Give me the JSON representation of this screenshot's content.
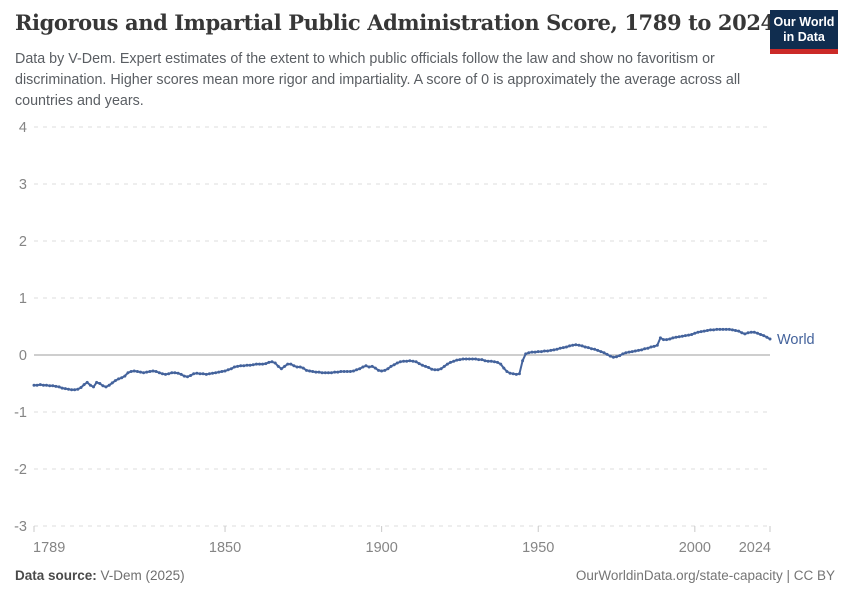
{
  "header": {
    "title": "Rigorous and Impartial Public Administration Score, 1789 to 2024",
    "subtitle": "Data by V-Dem. Expert estimates of the extent to which public officials follow the law and show no favoritism or discrimination. Higher scores mean more rigor and impartiality. A score of 0 is approximately the average across all countries and years.",
    "logo": {
      "line1": "Our World",
      "line2": "in Data",
      "bg_color": "#102d4f",
      "bar_color": "#cb2a28",
      "text_color": "#ffffff"
    }
  },
  "footer": {
    "source_label": "Data source:",
    "source_value": "V-Dem (2025)",
    "credit": "OurWorldinData.org/state-capacity | CC BY"
  },
  "chart_data": {
    "type": "line",
    "title": "Rigorous and Impartial Public Administration Score, 1789 to 2024",
    "xlabel": "",
    "ylabel": "",
    "xlim": [
      1789,
      2024
    ],
    "ylim": [
      -3,
      4
    ],
    "yticks": [
      4,
      3,
      2,
      1,
      0,
      -1,
      -2,
      -3
    ],
    "xticks": [
      1789,
      1850,
      1900,
      1950,
      2000,
      2024
    ],
    "grid": "horizontal-dashed",
    "zero_line": true,
    "legend_position": "end-of-line",
    "colors": {
      "grid": "#dcdcdc",
      "zero_line": "#9e9e9e",
      "axis_label": "#858585",
      "tick": "#c9c9c9"
    },
    "series": [
      {
        "name": "World",
        "color": "#44639c",
        "points": [
          [
            1789,
            -0.53
          ],
          [
            1790,
            -0.53
          ],
          [
            1791,
            -0.52
          ],
          [
            1792,
            -0.53
          ],
          [
            1793,
            -0.53
          ],
          [
            1794,
            -0.54
          ],
          [
            1795,
            -0.54
          ],
          [
            1796,
            -0.55
          ],
          [
            1797,
            -0.56
          ],
          [
            1798,
            -0.58
          ],
          [
            1799,
            -0.59
          ],
          [
            1800,
            -0.6
          ],
          [
            1801,
            -0.61
          ],
          [
            1802,
            -0.61
          ],
          [
            1803,
            -0.6
          ],
          [
            1804,
            -0.57
          ],
          [
            1805,
            -0.52
          ],
          [
            1806,
            -0.48
          ],
          [
            1807,
            -0.53
          ],
          [
            1808,
            -0.56
          ],
          [
            1809,
            -0.48
          ],
          [
            1810,
            -0.5
          ],
          [
            1811,
            -0.54
          ],
          [
            1812,
            -0.56
          ],
          [
            1813,
            -0.53
          ],
          [
            1814,
            -0.49
          ],
          [
            1815,
            -0.45
          ],
          [
            1816,
            -0.42
          ],
          [
            1817,
            -0.4
          ],
          [
            1818,
            -0.37
          ],
          [
            1819,
            -0.31
          ],
          [
            1820,
            -0.29
          ],
          [
            1821,
            -0.28
          ],
          [
            1822,
            -0.29
          ],
          [
            1823,
            -0.3
          ],
          [
            1824,
            -0.31
          ],
          [
            1825,
            -0.3
          ],
          [
            1826,
            -0.29
          ],
          [
            1827,
            -0.28
          ],
          [
            1828,
            -0.29
          ],
          [
            1829,
            -0.31
          ],
          [
            1830,
            -0.33
          ],
          [
            1831,
            -0.34
          ],
          [
            1832,
            -0.33
          ],
          [
            1833,
            -0.31
          ],
          [
            1834,
            -0.31
          ],
          [
            1835,
            -0.32
          ],
          [
            1836,
            -0.34
          ],
          [
            1837,
            -0.37
          ],
          [
            1838,
            -0.38
          ],
          [
            1839,
            -0.36
          ],
          [
            1840,
            -0.33
          ],
          [
            1841,
            -0.32
          ],
          [
            1842,
            -0.33
          ],
          [
            1843,
            -0.33
          ],
          [
            1844,
            -0.34
          ],
          [
            1845,
            -0.33
          ],
          [
            1846,
            -0.32
          ],
          [
            1847,
            -0.31
          ],
          [
            1848,
            -0.3
          ],
          [
            1849,
            -0.29
          ],
          [
            1850,
            -0.28
          ],
          [
            1851,
            -0.26
          ],
          [
            1852,
            -0.24
          ],
          [
            1853,
            -0.21
          ],
          [
            1854,
            -0.2
          ],
          [
            1855,
            -0.19
          ],
          [
            1856,
            -0.19
          ],
          [
            1857,
            -0.18
          ],
          [
            1858,
            -0.18
          ],
          [
            1859,
            -0.17
          ],
          [
            1860,
            -0.16
          ],
          [
            1861,
            -0.16
          ],
          [
            1862,
            -0.16
          ],
          [
            1863,
            -0.15
          ],
          [
            1864,
            -0.13
          ],
          [
            1865,
            -0.12
          ],
          [
            1866,
            -0.14
          ],
          [
            1867,
            -0.2
          ],
          [
            1868,
            -0.24
          ],
          [
            1869,
            -0.2
          ],
          [
            1870,
            -0.16
          ],
          [
            1871,
            -0.16
          ],
          [
            1872,
            -0.19
          ],
          [
            1873,
            -0.21
          ],
          [
            1874,
            -0.21
          ],
          [
            1875,
            -0.23
          ],
          [
            1876,
            -0.27
          ],
          [
            1877,
            -0.28
          ],
          [
            1878,
            -0.29
          ],
          [
            1879,
            -0.3
          ],
          [
            1880,
            -0.3
          ],
          [
            1881,
            -0.31
          ],
          [
            1882,
            -0.31
          ],
          [
            1883,
            -0.31
          ],
          [
            1884,
            -0.31
          ],
          [
            1885,
            -0.3
          ],
          [
            1886,
            -0.3
          ],
          [
            1887,
            -0.29
          ],
          [
            1888,
            -0.29
          ],
          [
            1889,
            -0.29
          ],
          [
            1890,
            -0.29
          ],
          [
            1891,
            -0.28
          ],
          [
            1892,
            -0.26
          ],
          [
            1893,
            -0.24
          ],
          [
            1894,
            -0.21
          ],
          [
            1895,
            -0.19
          ],
          [
            1896,
            -0.21
          ],
          [
            1897,
            -0.2
          ],
          [
            1898,
            -0.23
          ],
          [
            1899,
            -0.27
          ],
          [
            1900,
            -0.28
          ],
          [
            1901,
            -0.27
          ],
          [
            1902,
            -0.24
          ],
          [
            1903,
            -0.2
          ],
          [
            1904,
            -0.17
          ],
          [
            1905,
            -0.14
          ],
          [
            1906,
            -0.12
          ],
          [
            1907,
            -0.11
          ],
          [
            1908,
            -0.11
          ],
          [
            1909,
            -0.1
          ],
          [
            1910,
            -0.11
          ],
          [
            1911,
            -0.12
          ],
          [
            1912,
            -0.15
          ],
          [
            1913,
            -0.18
          ],
          [
            1914,
            -0.2
          ],
          [
            1915,
            -0.22
          ],
          [
            1916,
            -0.25
          ],
          [
            1917,
            -0.26
          ],
          [
            1918,
            -0.26
          ],
          [
            1919,
            -0.24
          ],
          [
            1920,
            -0.2
          ],
          [
            1921,
            -0.16
          ],
          [
            1922,
            -0.13
          ],
          [
            1923,
            -0.11
          ],
          [
            1924,
            -0.09
          ],
          [
            1925,
            -0.08
          ],
          [
            1926,
            -0.07
          ],
          [
            1927,
            -0.07
          ],
          [
            1928,
            -0.07
          ],
          [
            1929,
            -0.07
          ],
          [
            1930,
            -0.07
          ],
          [
            1931,
            -0.08
          ],
          [
            1932,
            -0.08
          ],
          [
            1933,
            -0.1
          ],
          [
            1934,
            -0.11
          ],
          [
            1935,
            -0.11
          ],
          [
            1936,
            -0.12
          ],
          [
            1937,
            -0.13
          ],
          [
            1938,
            -0.16
          ],
          [
            1939,
            -0.23
          ],
          [
            1940,
            -0.29
          ],
          [
            1941,
            -0.32
          ],
          [
            1942,
            -0.33
          ],
          [
            1943,
            -0.34
          ],
          [
            1944,
            -0.33
          ],
          [
            1945,
            -0.1
          ],
          [
            1946,
            0.02
          ],
          [
            1947,
            0.04
          ],
          [
            1948,
            0.05
          ],
          [
            1949,
            0.05
          ],
          [
            1950,
            0.06
          ],
          [
            1951,
            0.06
          ],
          [
            1952,
            0.07
          ],
          [
            1953,
            0.07
          ],
          [
            1954,
            0.08
          ],
          [
            1955,
            0.09
          ],
          [
            1956,
            0.1
          ],
          [
            1957,
            0.12
          ],
          [
            1958,
            0.13
          ],
          [
            1959,
            0.14
          ],
          [
            1960,
            0.16
          ],
          [
            1961,
            0.17
          ],
          [
            1962,
            0.18
          ],
          [
            1963,
            0.17
          ],
          [
            1964,
            0.16
          ],
          [
            1965,
            0.14
          ],
          [
            1966,
            0.13
          ],
          [
            1967,
            0.11
          ],
          [
            1968,
            0.1
          ],
          [
            1969,
            0.08
          ],
          [
            1970,
            0.06
          ],
          [
            1971,
            0.04
          ],
          [
            1972,
            0.01
          ],
          [
            1973,
            -0.02
          ],
          [
            1974,
            -0.04
          ],
          [
            1975,
            -0.03
          ],
          [
            1976,
            -0.01
          ],
          [
            1977,
            0.02
          ],
          [
            1978,
            0.04
          ],
          [
            1979,
            0.05
          ],
          [
            1980,
            0.06
          ],
          [
            1981,
            0.07
          ],
          [
            1982,
            0.08
          ],
          [
            1983,
            0.09
          ],
          [
            1984,
            0.11
          ],
          [
            1985,
            0.12
          ],
          [
            1986,
            0.14
          ],
          [
            1987,
            0.15
          ],
          [
            1988,
            0.17
          ],
          [
            1989,
            0.3
          ],
          [
            1990,
            0.27
          ],
          [
            1991,
            0.27
          ],
          [
            1992,
            0.28
          ],
          [
            1993,
            0.3
          ],
          [
            1994,
            0.31
          ],
          [
            1995,
            0.32
          ],
          [
            1996,
            0.33
          ],
          [
            1997,
            0.34
          ],
          [
            1998,
            0.35
          ],
          [
            1999,
            0.36
          ],
          [
            2000,
            0.38
          ],
          [
            2001,
            0.4
          ],
          [
            2002,
            0.41
          ],
          [
            2003,
            0.42
          ],
          [
            2004,
            0.43
          ],
          [
            2005,
            0.44
          ],
          [
            2006,
            0.44
          ],
          [
            2007,
            0.45
          ],
          [
            2008,
            0.45
          ],
          [
            2009,
            0.45
          ],
          [
            2010,
            0.45
          ],
          [
            2011,
            0.45
          ],
          [
            2012,
            0.44
          ],
          [
            2013,
            0.43
          ],
          [
            2014,
            0.42
          ],
          [
            2015,
            0.39
          ],
          [
            2016,
            0.37
          ],
          [
            2017,
            0.39
          ],
          [
            2018,
            0.4
          ],
          [
            2019,
            0.4
          ],
          [
            2020,
            0.38
          ],
          [
            2021,
            0.36
          ],
          [
            2022,
            0.34
          ],
          [
            2023,
            0.31
          ],
          [
            2024,
            0.28
          ]
        ]
      }
    ]
  }
}
